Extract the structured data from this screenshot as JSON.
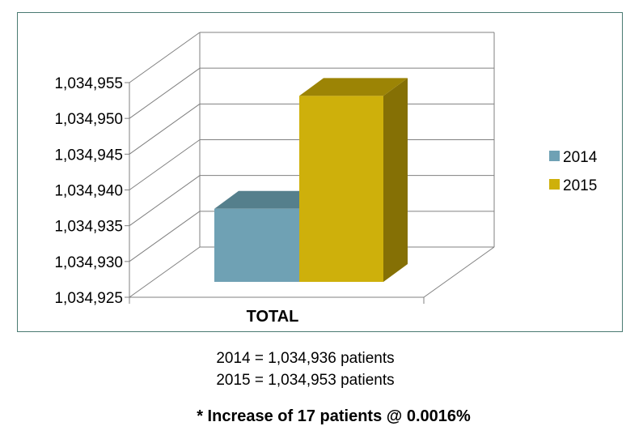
{
  "chart_data": {
    "type": "bar",
    "style": "3d-clustered-column",
    "categories": [
      "TOTAL"
    ],
    "series": [
      {
        "name": "2014",
        "values": [
          1034936
        ],
        "color": "#6fa1b4"
      },
      {
        "name": "2015",
        "values": [
          1034953
        ],
        "color": "#ceb00b"
      }
    ],
    "ylim": [
      1034925,
      1034955
    ],
    "ytick_step": 5,
    "yticks": [
      "1,034,925",
      "1,034,930",
      "1,034,935",
      "1,034,940",
      "1,034,945",
      "1,034,950",
      "1,034,955"
    ],
    "grid": true,
    "legend_position": "right",
    "title": "",
    "xlabel": "",
    "ylabel": ""
  },
  "notes": {
    "line_2014": "2014 = 1,034,936 patients",
    "line_2015": "2015 = 1,034,953 patients",
    "increase": "* Increase of 17 patients @ 0.0016%"
  },
  "colors": {
    "frame_border": "#4a7a72",
    "gridline": "#808080",
    "bar_2014_front": "#6fa1b4",
    "bar_2014_top": "#557f8c",
    "bar_2015_front": "#ceb00b",
    "bar_2015_top": "#9c8405",
    "bar_2015_side": "#857005"
  }
}
